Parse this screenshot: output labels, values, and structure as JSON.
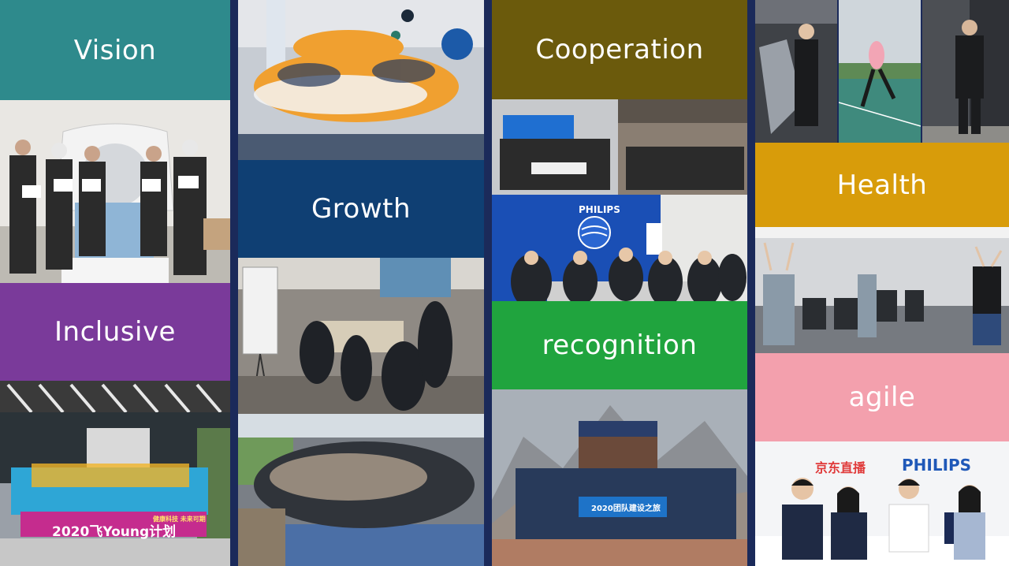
{
  "tiles": {
    "vision": {
      "label": "Vision",
      "color": "#2e8a8c"
    },
    "inclusive": {
      "label": "Inclusive",
      "color": "#7a3a9a"
    },
    "growth": {
      "label": "Growth",
      "color": "#0f3f73"
    },
    "cooperation": {
      "label": "Cooperation",
      "color": "#6b5a0c"
    },
    "recognition": {
      "label": "recognition",
      "color": "#20a43e"
    },
    "health": {
      "label": "Health",
      "color": "#d89c0a"
    },
    "agile": {
      "label": "agile",
      "color": "#f3a0ad"
    }
  },
  "photos": {
    "banner_text": "2020飞Young计划",
    "banner_tagline": "健康科技 未来可期",
    "philips_logo_text": "PHILIPS",
    "jd_live_text": "京东直播",
    "philips_brand_text": "PHILIPS",
    "sign_text": "2020团队建设之旅"
  }
}
